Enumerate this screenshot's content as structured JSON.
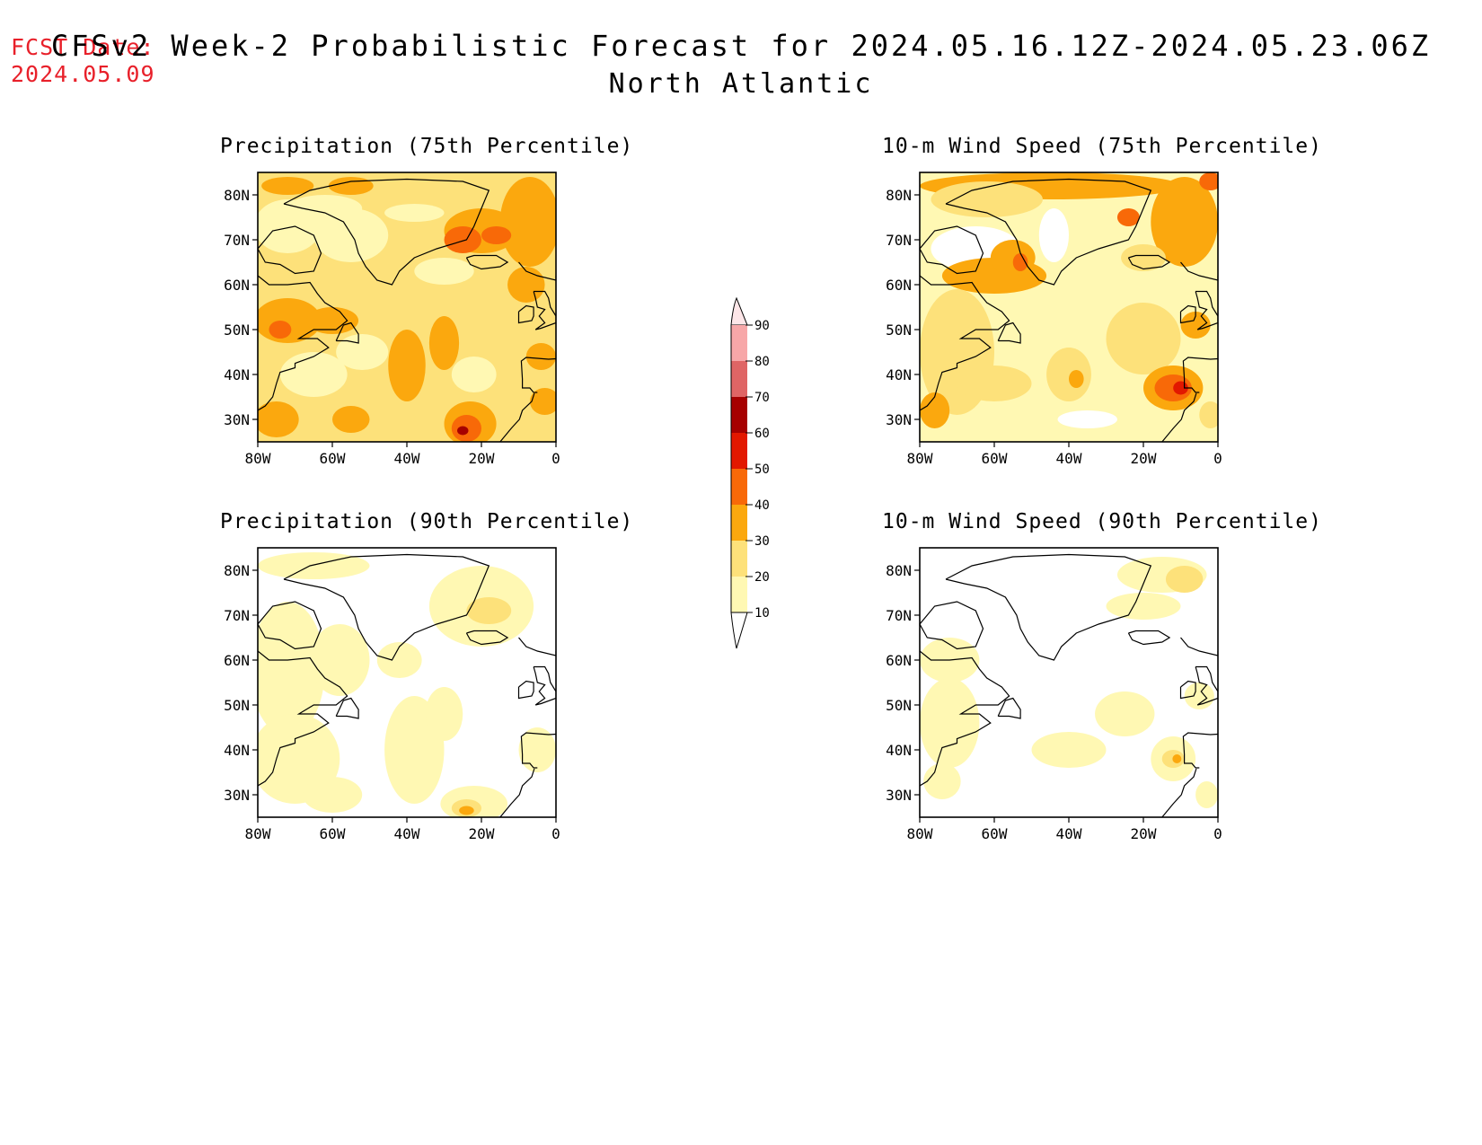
{
  "header": {
    "fcst_label": "FCST Date:",
    "fcst_date": "2024.05.09",
    "title": "CFSv2 Week-2 Probabilistic Forecast for 2024.05.16.12Z-2024.05.23.06Z",
    "subtitle": "North Atlantic"
  },
  "colors": {
    "10": "#ffffff",
    "20": "#fff8b3",
    "30": "#fde17a",
    "40": "#fba80e",
    "50": "#f86908",
    "60": "#e21800",
    "70": "#a60000",
    "80": "#df6565",
    "90": "#f7a7a8",
    "100": "#fde6e8"
  },
  "colorbar": {
    "levels": [
      10,
      20,
      30,
      40,
      50,
      60,
      70,
      80,
      90
    ],
    "labels": [
      "10",
      "20",
      "30",
      "40",
      "50",
      "60",
      "70",
      "80",
      "90"
    ]
  },
  "panels": [
    {
      "title": "Precipitation (75th Percentile)",
      "x_ticks": [
        "80W",
        "60W",
        "40W",
        "20W",
        "0"
      ],
      "y_ticks": [
        "30N",
        "40N",
        "50N",
        "60N",
        "70N",
        "80N"
      ],
      "background": "30",
      "blobs": [
        {
          "lon": -72,
          "lat": 82,
          "rx": 7,
          "ry": 2,
          "c": "40"
        },
        {
          "lon": -55,
          "lat": 82,
          "rx": 6,
          "ry": 2,
          "c": "40"
        },
        {
          "lon": -62,
          "lat": 77,
          "rx": 10,
          "ry": 3,
          "c": "20"
        },
        {
          "lon": -38,
          "lat": 76,
          "rx": 8,
          "ry": 2,
          "c": "20"
        },
        {
          "lon": -20,
          "lat": 72,
          "rx": 10,
          "ry": 5,
          "c": "40"
        },
        {
          "lon": -7,
          "lat": 74,
          "rx": 8,
          "ry": 10,
          "c": "40"
        },
        {
          "lon": -25,
          "lat": 70,
          "rx": 5,
          "ry": 3,
          "c": "50"
        },
        {
          "lon": -16,
          "lat": 71,
          "rx": 4,
          "ry": 2,
          "c": "50"
        },
        {
          "lon": -72,
          "lat": 73,
          "rx": 9,
          "ry": 6,
          "c": "20"
        },
        {
          "lon": -55,
          "lat": 71,
          "rx": 10,
          "ry": 6,
          "c": "20"
        },
        {
          "lon": -30,
          "lat": 63,
          "rx": 8,
          "ry": 3,
          "c": "20"
        },
        {
          "lon": -72,
          "lat": 52,
          "rx": 9,
          "ry": 5,
          "c": "40"
        },
        {
          "lon": -60,
          "lat": 52,
          "rx": 7,
          "ry": 3,
          "c": "40"
        },
        {
          "lon": -74,
          "lat": 50,
          "rx": 3,
          "ry": 2,
          "c": "50"
        },
        {
          "lon": -65,
          "lat": 40,
          "rx": 9,
          "ry": 5,
          "c": "20"
        },
        {
          "lon": -52,
          "lat": 45,
          "rx": 7,
          "ry": 4,
          "c": "20"
        },
        {
          "lon": -40,
          "lat": 42,
          "rx": 5,
          "ry": 8,
          "c": "40"
        },
        {
          "lon": -30,
          "lat": 47,
          "rx": 4,
          "ry": 6,
          "c": "40"
        },
        {
          "lon": -22,
          "lat": 40,
          "rx": 6,
          "ry": 4,
          "c": "20"
        },
        {
          "lon": -23,
          "lat": 29,
          "rx": 7,
          "ry": 5,
          "c": "40"
        },
        {
          "lon": -24,
          "lat": 28,
          "rx": 4,
          "ry": 3,
          "c": "50"
        },
        {
          "lon": -25,
          "lat": 27.5,
          "rx": 1.5,
          "ry": 1,
          "c": "70"
        },
        {
          "lon": -55,
          "lat": 30,
          "rx": 5,
          "ry": 3,
          "c": "40"
        },
        {
          "lon": -75,
          "lat": 30,
          "rx": 6,
          "ry": 4,
          "c": "40"
        },
        {
          "lon": -3,
          "lat": 34,
          "rx": 4,
          "ry": 3,
          "c": "40"
        },
        {
          "lon": -4,
          "lat": 44,
          "rx": 4,
          "ry": 3,
          "c": "40"
        },
        {
          "lon": -8,
          "lat": 60,
          "rx": 5,
          "ry": 4,
          "c": "40"
        }
      ]
    },
    {
      "title": "10-m Wind Speed (75th Percentile)",
      "x_ticks": [
        "80W",
        "60W",
        "40W",
        "20W",
        "0"
      ],
      "y_ticks": [
        "30N",
        "40N",
        "50N",
        "60N",
        "70N",
        "80N"
      ],
      "background": "20",
      "blobs": [
        {
          "lon": -45,
          "lat": 82,
          "rx": 35,
          "ry": 3,
          "c": "40"
        },
        {
          "lon": -62,
          "lat": 79,
          "rx": 15,
          "ry": 4,
          "c": "30"
        },
        {
          "lon": -9,
          "lat": 74,
          "rx": 9,
          "ry": 10,
          "c": "40"
        },
        {
          "lon": -2,
          "lat": 83,
          "rx": 3,
          "ry": 2,
          "c": "50"
        },
        {
          "lon": -24,
          "lat": 75,
          "rx": 3,
          "ry": 2,
          "c": "50"
        },
        {
          "lon": -20,
          "lat": 66,
          "rx": 6,
          "ry": 3,
          "c": "30"
        },
        {
          "lon": -65,
          "lat": 68,
          "rx": 12,
          "ry": 5,
          "c": "10"
        },
        {
          "lon": -44,
          "lat": 71,
          "rx": 4,
          "ry": 6,
          "c": "10"
        },
        {
          "lon": -60,
          "lat": 62,
          "rx": 14,
          "ry": 4,
          "c": "40"
        },
        {
          "lon": -55,
          "lat": 66,
          "rx": 6,
          "ry": 4,
          "c": "40"
        },
        {
          "lon": -53,
          "lat": 65,
          "rx": 2,
          "ry": 2,
          "c": "50"
        },
        {
          "lon": -70,
          "lat": 45,
          "rx": 10,
          "ry": 14,
          "c": "30"
        },
        {
          "lon": -76,
          "lat": 32,
          "rx": 4,
          "ry": 4,
          "c": "40"
        },
        {
          "lon": -60,
          "lat": 38,
          "rx": 10,
          "ry": 4,
          "c": "30"
        },
        {
          "lon": -40,
          "lat": 40,
          "rx": 6,
          "ry": 6,
          "c": "30"
        },
        {
          "lon": -38,
          "lat": 39,
          "rx": 2,
          "ry": 2,
          "c": "40"
        },
        {
          "lon": -20,
          "lat": 48,
          "rx": 10,
          "ry": 8,
          "c": "30"
        },
        {
          "lon": -12,
          "lat": 37,
          "rx": 8,
          "ry": 5,
          "c": "40"
        },
        {
          "lon": -12,
          "lat": 37,
          "rx": 5,
          "ry": 3,
          "c": "50"
        },
        {
          "lon": -10,
          "lat": 37,
          "rx": 2,
          "ry": 1.5,
          "c": "60"
        },
        {
          "lon": -6,
          "lat": 51,
          "rx": 4,
          "ry": 3,
          "c": "40"
        },
        {
          "lon": -35,
          "lat": 30,
          "rx": 8,
          "ry": 2,
          "c": "10"
        },
        {
          "lon": -2,
          "lat": 31,
          "rx": 3,
          "ry": 3,
          "c": "30"
        }
      ]
    },
    {
      "title": "Precipitation (90th Percentile)",
      "x_ticks": [
        "80W",
        "60W",
        "40W",
        "20W",
        "0"
      ],
      "y_ticks": [
        "30N",
        "40N",
        "50N",
        "60N",
        "70N",
        "80N"
      ],
      "background": "10",
      "blobs": [
        {
          "lon": -65,
          "lat": 81,
          "rx": 15,
          "ry": 3,
          "c": "20"
        },
        {
          "lon": -20,
          "lat": 72,
          "rx": 14,
          "ry": 9,
          "c": "20"
        },
        {
          "lon": -18,
          "lat": 71,
          "rx": 6,
          "ry": 3,
          "c": "30"
        },
        {
          "lon": -72,
          "lat": 58,
          "rx": 10,
          "ry": 15,
          "c": "20"
        },
        {
          "lon": -58,
          "lat": 60,
          "rx": 8,
          "ry": 8,
          "c": "20"
        },
        {
          "lon": -42,
          "lat": 60,
          "rx": 6,
          "ry": 4,
          "c": "20"
        },
        {
          "lon": -70,
          "lat": 38,
          "rx": 12,
          "ry": 10,
          "c": "20"
        },
        {
          "lon": -38,
          "lat": 40,
          "rx": 8,
          "ry": 12,
          "c": "20"
        },
        {
          "lon": -30,
          "lat": 48,
          "rx": 5,
          "ry": 6,
          "c": "20"
        },
        {
          "lon": -22,
          "lat": 28,
          "rx": 9,
          "ry": 4,
          "c": "20"
        },
        {
          "lon": -24,
          "lat": 27,
          "rx": 4,
          "ry": 2,
          "c": "30"
        },
        {
          "lon": -24,
          "lat": 26.5,
          "rx": 2,
          "ry": 1,
          "c": "40"
        },
        {
          "lon": -5,
          "lat": 40,
          "rx": 5,
          "ry": 5,
          "c": "20"
        },
        {
          "lon": -60,
          "lat": 30,
          "rx": 8,
          "ry": 4,
          "c": "20"
        }
      ]
    },
    {
      "title": "10-m Wind Speed (90th Percentile)",
      "x_ticks": [
        "80W",
        "60W",
        "40W",
        "20W",
        "0"
      ],
      "y_ticks": [
        "30N",
        "40N",
        "50N",
        "60N",
        "70N",
        "80N"
      ],
      "background": "10",
      "blobs": [
        {
          "lon": -15,
          "lat": 79,
          "rx": 12,
          "ry": 4,
          "c": "20"
        },
        {
          "lon": -9,
          "lat": 78,
          "rx": 5,
          "ry": 3,
          "c": "30"
        },
        {
          "lon": -20,
          "lat": 72,
          "rx": 10,
          "ry": 3,
          "c": "20"
        },
        {
          "lon": -72,
          "lat": 60,
          "rx": 8,
          "ry": 5,
          "c": "20"
        },
        {
          "lon": -72,
          "lat": 46,
          "rx": 8,
          "ry": 10,
          "c": "20"
        },
        {
          "lon": -74,
          "lat": 33,
          "rx": 5,
          "ry": 4,
          "c": "20"
        },
        {
          "lon": -40,
          "lat": 40,
          "rx": 10,
          "ry": 4,
          "c": "20"
        },
        {
          "lon": -25,
          "lat": 48,
          "rx": 8,
          "ry": 5,
          "c": "20"
        },
        {
          "lon": -12,
          "lat": 38,
          "rx": 6,
          "ry": 5,
          "c": "20"
        },
        {
          "lon": -12,
          "lat": 38,
          "rx": 3,
          "ry": 2,
          "c": "30"
        },
        {
          "lon": -11,
          "lat": 38,
          "rx": 1.2,
          "ry": 1,
          "c": "40"
        },
        {
          "lon": -5,
          "lat": 52,
          "rx": 4,
          "ry": 3,
          "c": "20"
        },
        {
          "lon": -3,
          "lat": 30,
          "rx": 3,
          "ry": 3,
          "c": "20"
        }
      ]
    }
  ]
}
